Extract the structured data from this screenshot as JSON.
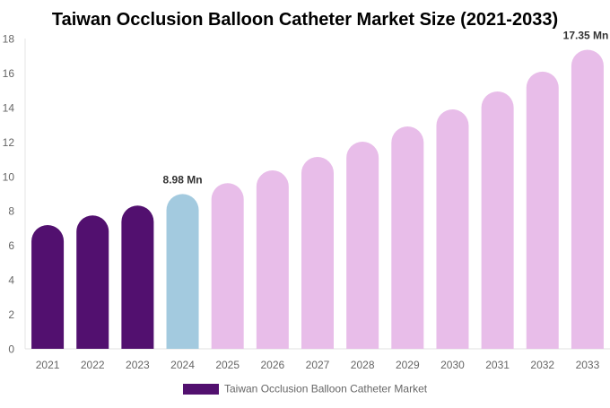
{
  "chart_data": {
    "type": "bar",
    "title": "Taiwan Occlusion Balloon Catheter Market Size (2021-2033)",
    "categories": [
      "2021",
      "2022",
      "2023",
      "2024",
      "2025",
      "2026",
      "2027",
      "2028",
      "2029",
      "2030",
      "2031",
      "2032",
      "2033"
    ],
    "values": [
      7.18,
      7.74,
      8.31,
      8.98,
      9.61,
      10.35,
      11.13,
      12.02,
      12.9,
      13.89,
      14.93,
      16.08,
      17.35
    ],
    "bar_colors": [
      "#52106f",
      "#52106f",
      "#52106f",
      "#a3cadf",
      "#e8bde9",
      "#e8bde9",
      "#e8bde9",
      "#e8bde9",
      "#e8bde9",
      "#e8bde9",
      "#e8bde9",
      "#e8bde9",
      "#e8bde9"
    ],
    "data_labels": [
      {
        "index": 3,
        "text": "8.98 Mn"
      },
      {
        "index": 12,
        "text": "17.35 Mn"
      }
    ],
    "ylim": [
      0,
      18
    ],
    "yticks": [
      "0",
      "2",
      "4",
      "6",
      "8",
      "10",
      "12",
      "14",
      "16",
      "18"
    ],
    "grid": false,
    "legend": {
      "position": "bottom",
      "entries": [
        {
          "name": "Taiwan Occlusion Balloon Catheter Market",
          "color": "#52106f"
        }
      ]
    }
  }
}
